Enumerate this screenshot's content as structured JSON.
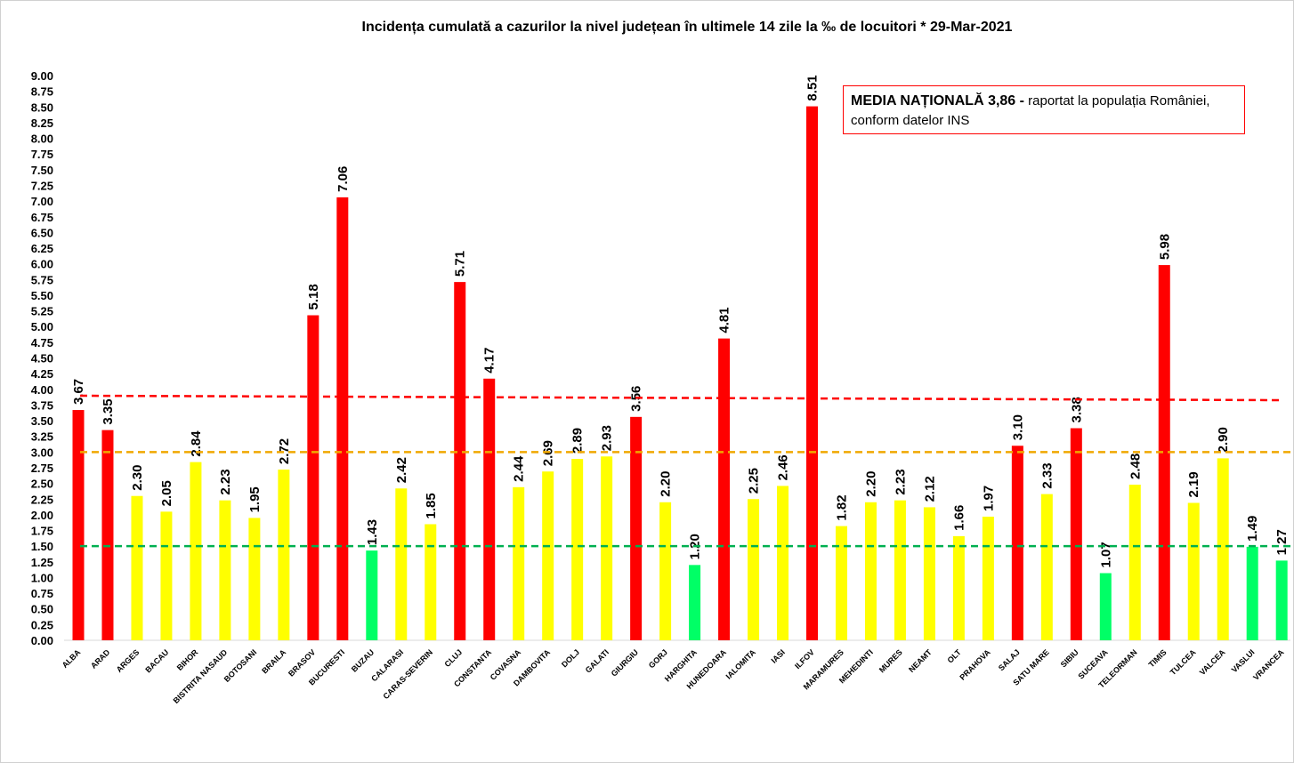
{
  "chart_data": {
    "type": "bar",
    "title": "Incidența cumulată a cazurilor la nivel județean în ultimele 14 zile la ‰ de locuitori *  29-Mar-2021",
    "xlabel": "",
    "ylabel": "",
    "ylim": [
      0,
      9
    ],
    "ytick_step": 0.25,
    "grid": false,
    "legend": "none",
    "categories": [
      "ALBA",
      "ARAD",
      "ARGES",
      "BACAU",
      "BIHOR",
      "BISTRITA NASAUD",
      "BOTOSANI",
      "BRAILA",
      "BRASOV",
      "BUCURESTI",
      "BUZAU",
      "CALARASI",
      "CARAS-SEVERIN",
      "CLUJ",
      "CONSTANTA",
      "COVASNA",
      "DAMBOVITA",
      "DOLJ",
      "GALATI",
      "GIURGIU",
      "GORJ",
      "HARGHITA",
      "HUNEDOARA",
      "IALOMITA",
      "IASI",
      "ILFOV",
      "MARAMURES",
      "MEHEDINTI",
      "MURES",
      "NEAMT",
      "OLT",
      "PRAHOVA",
      "SALAJ",
      "SATU MARE",
      "SIBIU",
      "SUCEAVA",
      "TELEORMAN",
      "TIMIS",
      "TULCEA",
      "VALCEA",
      "VASLUI",
      "VRANCEA"
    ],
    "values": [
      3.67,
      3.35,
      2.3,
      2.05,
      2.84,
      2.23,
      1.95,
      2.72,
      5.18,
      7.06,
      1.43,
      2.42,
      1.85,
      5.71,
      4.17,
      2.44,
      2.69,
      2.89,
      2.93,
      3.56,
      2.2,
      1.2,
      4.81,
      2.25,
      2.46,
      8.51,
      1.82,
      2.2,
      2.23,
      2.12,
      1.66,
      1.97,
      3.1,
      2.33,
      3.38,
      1.07,
      2.48,
      5.98,
      2.19,
      2.9,
      1.49,
      1.27
    ],
    "colors": {
      "high": "#ff0000",
      "medium": "#ffff00",
      "low": "#00ff66"
    },
    "thresholds": {
      "high_above": 3.0,
      "low_below": 1.5
    },
    "reference_lines": [
      {
        "value": 3.86,
        "color": "#ff0000"
      },
      {
        "value": 3.0,
        "color": "#f0a800"
      },
      {
        "value": 1.5,
        "color": "#00b050"
      }
    ],
    "annotation": {
      "bold": "MEDIA NAȚIONALĂ  3,86 -",
      "text": " raportat la populația României, conform datelor INS"
    }
  }
}
